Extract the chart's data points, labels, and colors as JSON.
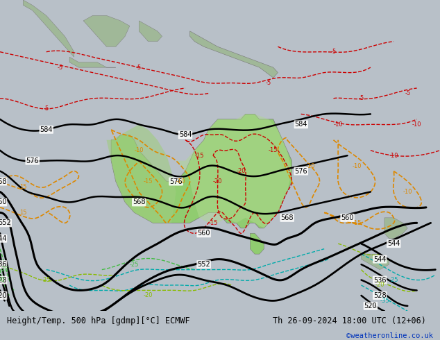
{
  "title_left": "Height/Temp. 500 hPa [gdmp][°C] ECMWF",
  "title_right": "Th 26-09-2024 18:00 UTC (12+06)",
  "watermark": "©weatheronline.co.uk",
  "fig_width": 6.34,
  "fig_height": 4.9,
  "ocean_color": "#c8d0d8",
  "land_color": "#b8c8b0",
  "aus_green": "#90cc70",
  "bottom_bar_color": "#b8c0c8",
  "lon_min": 90,
  "lon_max": 185,
  "lat_min": -55,
  "lat_max": 5
}
